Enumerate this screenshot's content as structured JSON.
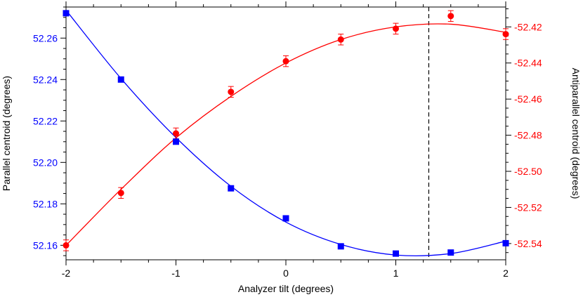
{
  "chart_data": {
    "type": "scatter",
    "title": "",
    "xlabel": "Analyzer tilt (degrees)",
    "ylabel_left": "Parallel centroid (degrees)",
    "ylabel_right": "Antiparallel centroid (degrees)",
    "xlim": [
      -2,
      2
    ],
    "ylim_left": [
      52.153,
      52.275
    ],
    "ylim_right": [
      -52.549,
      -52.409
    ],
    "x_ticks": [
      "-2",
      "-1",
      "0",
      "1",
      "2"
    ],
    "y_ticks_left": [
      "52.16",
      "52.18",
      "52.20",
      "52.22",
      "52.24",
      "52.26"
    ],
    "y_ticks_right": [
      "-52.54",
      "-52.52",
      "-52.50",
      "-52.48",
      "-52.46",
      "-52.44",
      "-52.42"
    ],
    "grid": false,
    "vertical_dashed_line_x": 1.3,
    "colors": {
      "parallel": "#0000ff",
      "antiparallel": "#ff0000",
      "left_axis_labels": "#0000ff",
      "right_axis_labels": "#ff0000",
      "reference_line": "#000000"
    },
    "series": [
      {
        "axis": "left",
        "marker": "square",
        "x": [
          -2,
          -1.5,
          -1,
          -0.5,
          0,
          0.5,
          1,
          1.5,
          2
        ],
        "y": [
          52.272,
          52.24,
          52.21,
          52.1875,
          52.173,
          52.1595,
          52.156,
          52.1565,
          52.161
        ],
        "err": [
          0.0012,
          0.0012,
          0.0012,
          0.0012,
          0.0012,
          0.0012,
          0.0012,
          0.0012,
          0.0012
        ],
        "fit": {
          "x": [
            -2,
            -1.5,
            -1,
            -0.5,
            0,
            0.5,
            1,
            1.5,
            2
          ],
          "y": [
            52.2735,
            52.2405,
            52.212,
            52.1885,
            52.1712,
            52.1604,
            52.1553,
            52.156,
            52.162
          ]
        }
      },
      {
        "axis": "right",
        "marker": "circle",
        "x": [
          -2,
          -1.5,
          -1,
          -0.5,
          0,
          0.5,
          1,
          1.5,
          2
        ],
        "y": [
          -52.541,
          -52.512,
          -52.479,
          -52.456,
          -52.439,
          -52.427,
          -52.421,
          -52.414,
          -52.424
        ],
        "err": [
          0.003,
          0.003,
          0.003,
          0.003,
          0.003,
          0.003,
          0.003,
          0.003,
          0.003
        ],
        "fit": {
          "x": [
            -2,
            -1.5,
            -1,
            -0.5,
            0,
            0.5,
            1,
            1.5,
            2
          ],
          "y": [
            -52.541,
            -52.51,
            -52.4815,
            -52.4585,
            -52.44,
            -52.427,
            -52.42,
            -52.4185,
            -52.423
          ]
        }
      }
    ]
  }
}
